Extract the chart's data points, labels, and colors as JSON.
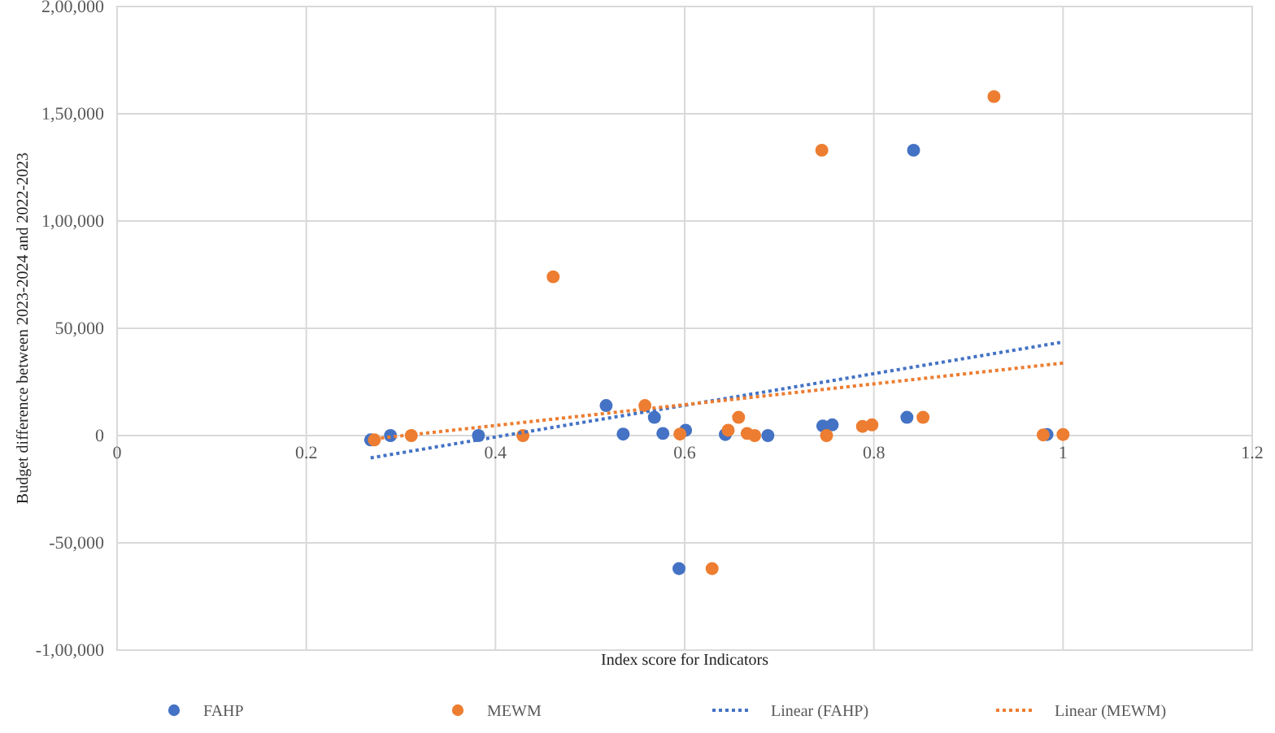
{
  "chart_data": {
    "type": "scatter",
    "xlabel": "Index score for Indicators",
    "ylabel": "Budget difference between 2023-2024  and  2022-2023",
    "xlim": [
      0,
      1.2
    ],
    "xticks": [
      0,
      0.2,
      0.4,
      0.6,
      0.8,
      1,
      1.2
    ],
    "ylim": [
      -100000,
      200000
    ],
    "yticks": [
      {
        "value": -100000,
        "label": "-1,00,000"
      },
      {
        "value": -50000,
        "label": "-50,000"
      },
      0,
      {
        "value": 50000,
        "label": "50,000"
      },
      {
        "value": 100000,
        "label": "1,00,000"
      },
      {
        "value": 150000,
        "label": "1,50,000"
      },
      {
        "value": 200000,
        "label": "2,00,000"
      }
    ],
    "grid": true,
    "legend": "bottom",
    "marker": "circle",
    "series": [
      {
        "name": "FAHP",
        "color": "#4472c4",
        "x": [
          0.268,
          0.289,
          0.382,
          0.517,
          0.535,
          0.568,
          0.577,
          0.601,
          0.594,
          0.643,
          0.688,
          0.746,
          0.756,
          0.835,
          0.842,
          0.983
        ],
        "values": [
          -2000,
          0,
          0,
          14000,
          700,
          8500,
          1000,
          2500,
          -62000,
          500,
          0,
          4500,
          5000,
          8500,
          133000,
          500
        ]
      },
      {
        "name": "MEWM",
        "color": "#ed7d31",
        "x": [
          0.272,
          0.311,
          0.429,
          0.461,
          0.558,
          0.595,
          0.629,
          0.646,
          0.657,
          0.666,
          0.674,
          0.75,
          0.745,
          0.788,
          0.798,
          0.852,
          0.927,
          0.979,
          1.0
        ],
        "values": [
          -2000,
          0,
          0,
          74000,
          14000,
          700,
          -62000,
          2500,
          8500,
          1000,
          0,
          0,
          133000,
          4300,
          5000,
          8500,
          158000,
          300,
          500
        ]
      },
      {
        "name": "Linear (FAHP)",
        "type": "line",
        "color": "#4472c4",
        "line_style": "dotted",
        "marker": "none",
        "x": [
          0.268,
          0.997
        ],
        "values": [
          -10400,
          43400
        ]
      },
      {
        "name": "Linear (MEWM)",
        "type": "line",
        "color": "#ed7d31",
        "line_style": "dotted",
        "marker": "none",
        "x": [
          0.272,
          1.0
        ],
        "values": [
          -1500,
          33800
        ]
      }
    ]
  }
}
